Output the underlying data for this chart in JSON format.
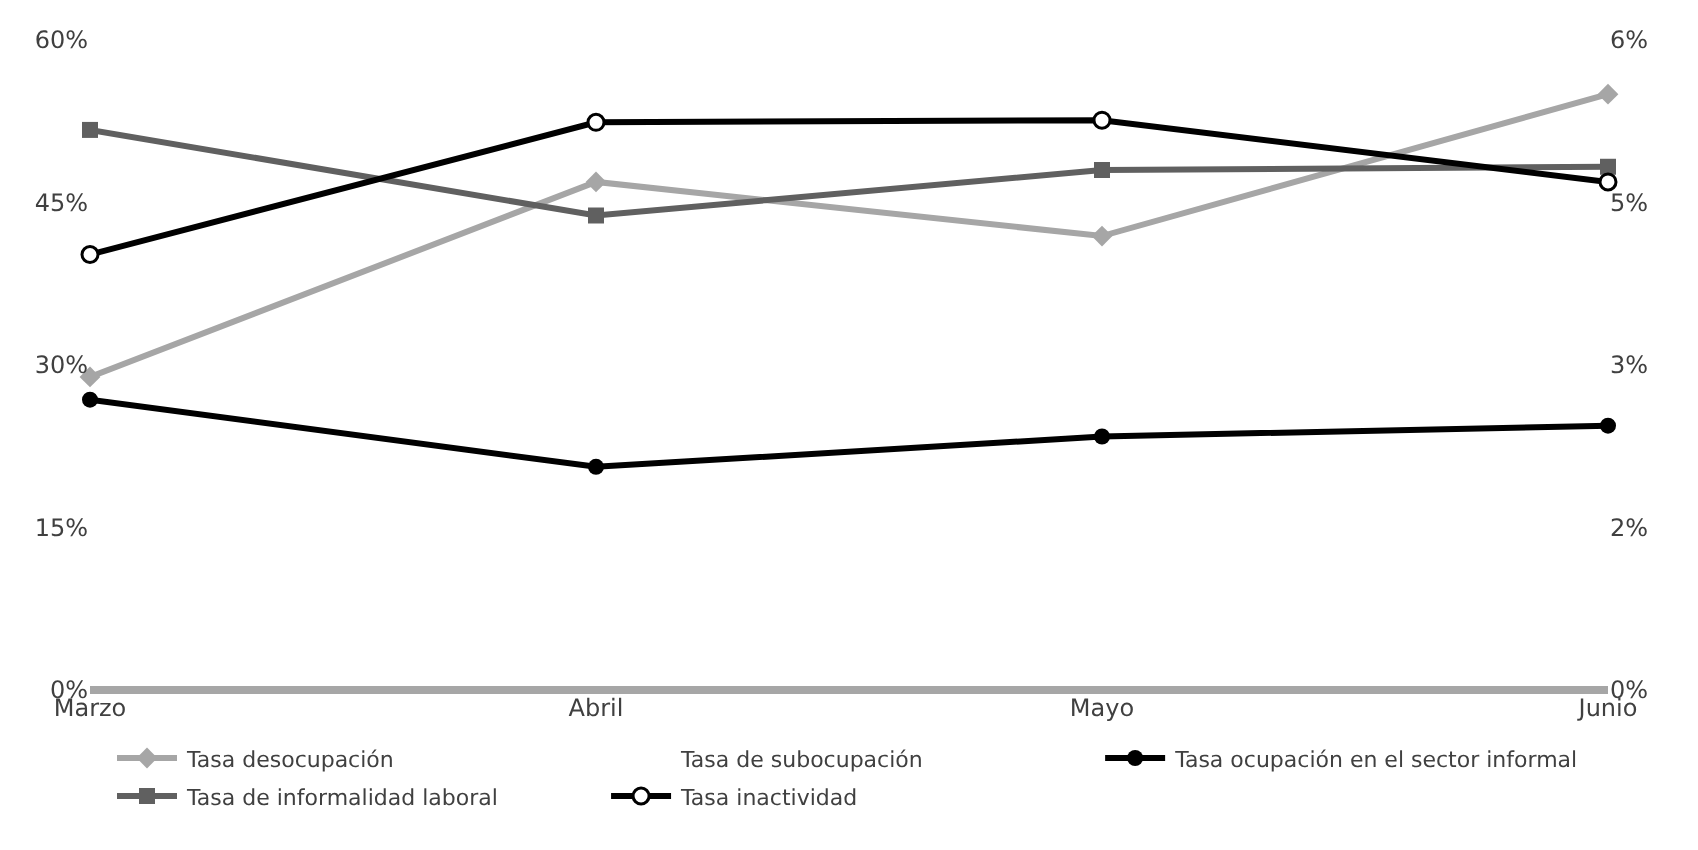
{
  "chart_data": {
    "type": "line",
    "categories": [
      "Marzo",
      "Abril",
      "Mayo",
      "Junio"
    ],
    "series": [
      {
        "name": "Tasa desocupación",
        "color": "#a6a6a6",
        "marker": "diamond",
        "values": [
          28.9,
          46.9,
          41.9,
          55.0
        ]
      },
      {
        "name": "Tasa de subocupación",
        "marker": "none",
        "axis": "y2",
        "values": [
          null,
          null,
          null,
          null
        ]
      },
      {
        "name": "Tasa ocupación en el sector informal",
        "color": "#000000",
        "marker": "circle",
        "values": [
          26.8,
          20.6,
          23.4,
          24.4
        ]
      },
      {
        "name": "Tasa de informalidad laboral",
        "color": "#606060",
        "marker": "square",
        "values": [
          51.7,
          43.8,
          48.0,
          48.3
        ]
      },
      {
        "name": "Tasa inactividad",
        "color": "#000000",
        "marker": "circle-open",
        "values": [
          40.2,
          52.4,
          52.6,
          46.9
        ]
      }
    ],
    "ylim": [
      0,
      60
    ],
    "yticks": [
      {
        "value": 0,
        "label": "0%"
      },
      {
        "value": 15,
        "label": "15%"
      },
      {
        "value": 30,
        "label": "30%"
      },
      {
        "value": 45,
        "label": "45%"
      },
      {
        "value": 60,
        "label": "60%"
      }
    ],
    "y2lim": [
      0,
      6
    ],
    "y2ticks": [
      {
        "value": 0,
        "label": "0%"
      },
      {
        "value": 1.5,
        "label": "2%"
      },
      {
        "value": 3,
        "label": "3%"
      },
      {
        "value": 4.5,
        "label": "5%"
      },
      {
        "value": 6,
        "label": "6%"
      }
    ],
    "legend": "bottom",
    "line_style": "solid"
  }
}
